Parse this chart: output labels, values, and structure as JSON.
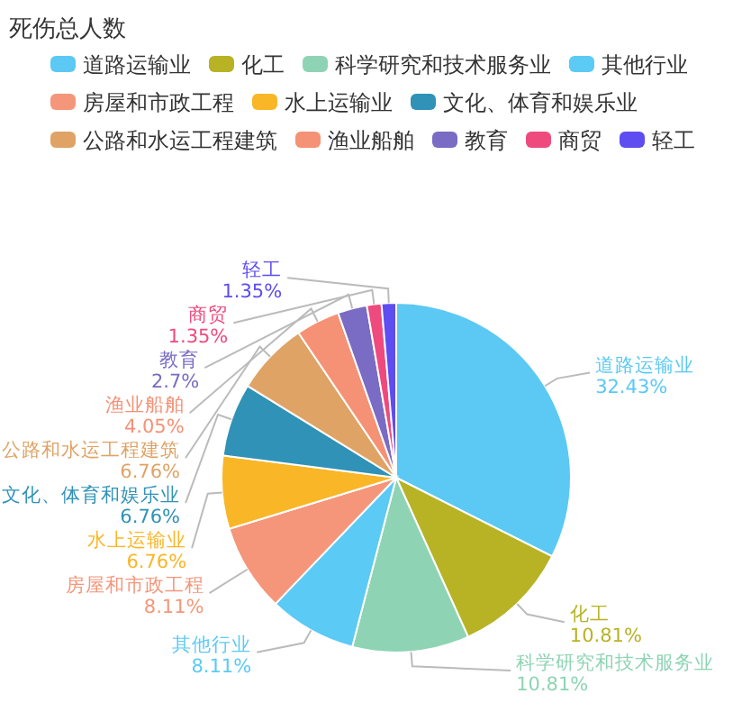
{
  "chart_data": {
    "type": "pie",
    "title": "死伤总人数",
    "legend": "top",
    "categories": [
      "道路运输业",
      "化工",
      "科学研究和技术服务业",
      "其他行业",
      "房屋和市政工程",
      "水上运输业",
      "文化、体育和娱乐业",
      "公路和水运工程建筑",
      "渔业船舶",
      "教育",
      "商贸",
      "轻工"
    ],
    "values": [
      32.43,
      10.81,
      10.81,
      8.11,
      8.11,
      6.76,
      6.76,
      6.76,
      4.05,
      2.7,
      1.35,
      1.35
    ],
    "value_labels": [
      "32.43%",
      "10.81%",
      "10.81%",
      "8.11%",
      "8.11%",
      "6.76%",
      "6.76%",
      "6.76%",
      "4.05%",
      "2.7%",
      "1.35%",
      "1.35%"
    ],
    "colors": [
      "#5bc9f3",
      "#b7b325",
      "#8ed4b4",
      "#5bcaf5",
      "#f5967a",
      "#f9b626",
      "#2f92b6",
      "#dfa366",
      "#f59175",
      "#7a6bc4",
      "#ee4a7e",
      "#5e4df0"
    ]
  }
}
